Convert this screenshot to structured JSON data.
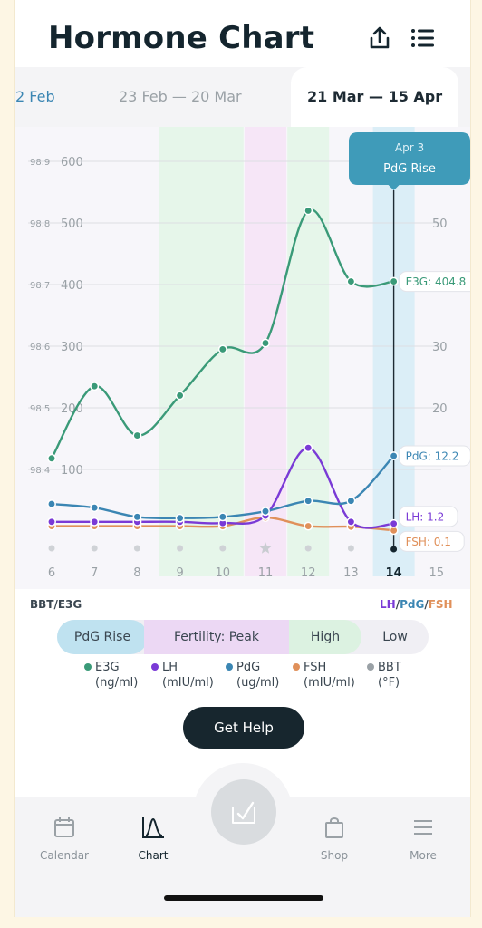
{
  "header": {
    "title": "Hormone Chart",
    "share_icon": "share-icon",
    "list_icon": "list-icon"
  },
  "tabs": [
    {
      "label": "2 Feb",
      "active": false
    },
    {
      "label": "23 Feb — 20 Mar",
      "active": false
    },
    {
      "label": "21 Mar — 15 Apr",
      "active": true
    }
  ],
  "tooltip": {
    "date": "Apr 3",
    "event": "PdG Rise"
  },
  "chart_data": {
    "type": "line",
    "x": [
      6,
      7,
      8,
      9,
      10,
      11,
      12,
      13,
      14
    ],
    "x_ticks": [
      "6",
      "7",
      "8",
      "9",
      "10",
      "11",
      "12",
      "13",
      "14",
      "15"
    ],
    "left_bbt_ticks": [
      "98.9",
      "98.8",
      "98.7",
      "98.6",
      "98.5",
      "98.4"
    ],
    "left_e3g_ticks": [
      "600",
      "500",
      "400",
      "300",
      "200",
      "100"
    ],
    "right_ticks": [
      "50",
      "30",
      "20"
    ],
    "ylim_e3g": [
      0,
      600
    ],
    "ylim_right": [
      0,
      60
    ],
    "selected_day": 14,
    "series": [
      {
        "name": "E3G",
        "color": "#3a9a78",
        "values": [
          118,
          235,
          155,
          220,
          295,
          305,
          520,
          405,
          405
        ],
        "end_label": "E3G: 404.8"
      },
      {
        "name": "LH",
        "color": "#7a3ad6",
        "values": [
          1.5,
          1.5,
          1.5,
          1.5,
          1.3,
          2.5,
          13.5,
          1.5,
          1.2
        ],
        "end_label": "LH: 1.2"
      },
      {
        "name": "PdG",
        "color": "#3b86b3",
        "values": [
          4.4,
          3.8,
          2.3,
          2.1,
          2.3,
          3.2,
          4.9,
          4.9,
          12.2
        ],
        "end_label": "PdG: 12.2"
      },
      {
        "name": "FSH",
        "color": "#e0905a",
        "values": [
          0.8,
          0.8,
          0.8,
          0.8,
          0.8,
          2.2,
          0.8,
          0.7,
          0.1
        ],
        "end_label": "FSH: 0.1"
      }
    ],
    "phase_bands": [
      {
        "label": "High",
        "from": 9,
        "to": 10,
        "color": "#e6f6ea"
      },
      {
        "label": "Fertility: Peak",
        "from": 11,
        "to": 11,
        "color": "#f6e6f7"
      },
      {
        "label": "High",
        "from": 12,
        "to": 12,
        "color": "#e6f6ea"
      },
      {
        "label": "PdG Rise",
        "from": 14,
        "to": 14,
        "color": "#dbeef7"
      }
    ],
    "bbt_markers": [
      6,
      7,
      8,
      9,
      10,
      12,
      13,
      15
    ],
    "peak_marker_day": 11
  },
  "axis_captions": {
    "left": "BBT/E3G",
    "right_lh": "LH",
    "right_pdg": "PdG",
    "right_fsh": "FSH",
    "slash": "/"
  },
  "phase_legend": [
    {
      "label": "PdG Rise",
      "color": "#bfe2f0"
    },
    {
      "label": "Fertility: Peak",
      "color": "#ecd8f4"
    },
    {
      "label": "High",
      "color": "#dcf2e1"
    },
    {
      "label": "Low",
      "color": "#f0eff4"
    }
  ],
  "series_legend": [
    {
      "name": "E3G",
      "unit": "(ng/ml)",
      "color": "#3a9a78"
    },
    {
      "name": "LH",
      "unit": "(mIU/ml)",
      "color": "#7a3ad6"
    },
    {
      "name": "PdG",
      "unit": "(ug/ml)",
      "color": "#3b86b3"
    },
    {
      "name": "FSH",
      "unit": "(mIU/ml)",
      "color": "#e0905a"
    },
    {
      "name": "BBT",
      "unit": "(°F)",
      "color": "#9aa1a6"
    }
  ],
  "help_button": "Get Help",
  "nav": [
    {
      "label": "Calendar",
      "icon": "calendar-icon"
    },
    {
      "label": "Chart",
      "icon": "chart-icon",
      "active": true
    },
    {
      "label": "Shop",
      "icon": "shop-icon"
    },
    {
      "label": "More",
      "icon": "menu-icon"
    }
  ],
  "fab_icon": "check-icon"
}
